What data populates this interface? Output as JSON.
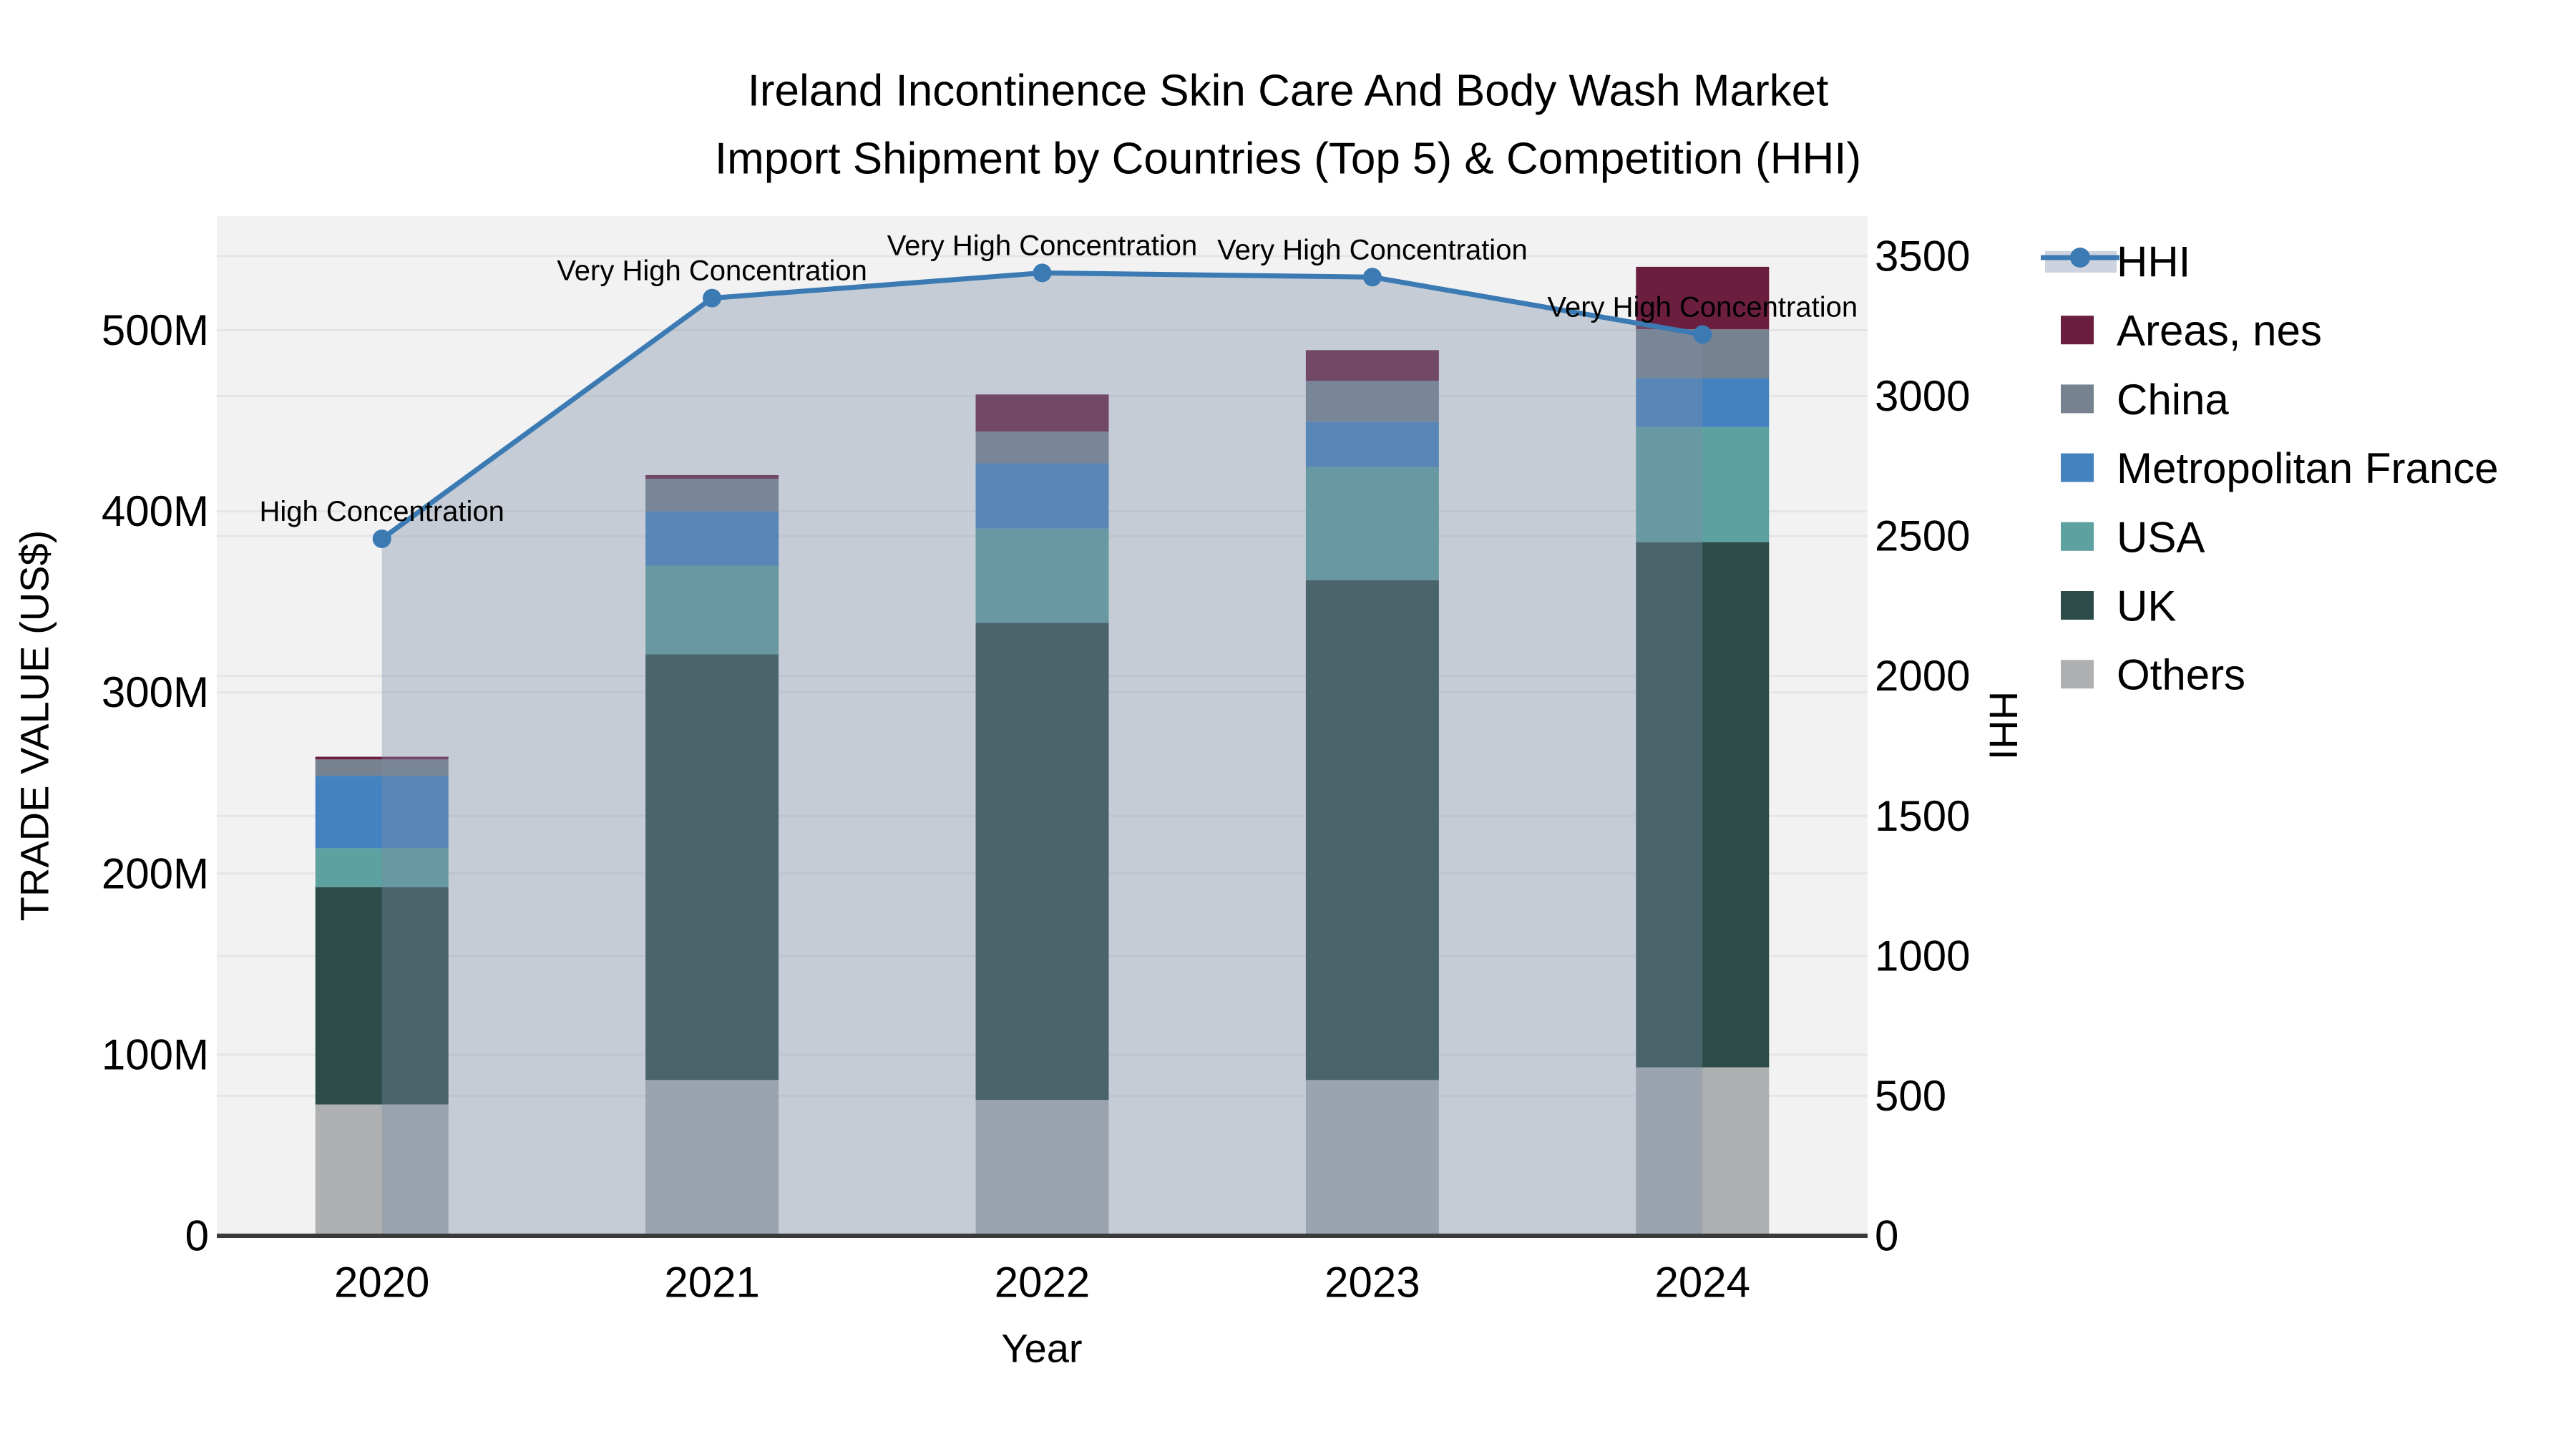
{
  "title": {
    "line1": "Ireland Incontinence Skin Care And Body Wash Market",
    "line2": "Import Shipment by Countries (Top 5) & Competition (HHI)"
  },
  "colors": {
    "background": "#ffffff",
    "plot_bg": "#f2f2f3",
    "grid": "rgba(0,0,0,0.05)",
    "axis_line": "#3a3a3a",
    "hhi_line": "#3b7ab3",
    "hhi_fill": "rgba(124,142,169,0.38)",
    "hhi_legend_band": "#cdd4df"
  },
  "legend": {
    "items": [
      {
        "label": "HHI",
        "type": "line",
        "color": "#3b7ab3"
      },
      {
        "label": "Areas, nes",
        "type": "swatch",
        "color": "#6b1e3e"
      },
      {
        "label": "China",
        "type": "swatch",
        "color": "#76828f"
      },
      {
        "label": "Metropolitan France",
        "type": "swatch",
        "color": "#4382be"
      },
      {
        "label": "USA",
        "type": "swatch",
        "color": "#5da1a0"
      },
      {
        "label": "UK",
        "type": "swatch",
        "color": "#2d4b48"
      },
      {
        "label": "Others",
        "type": "swatch",
        "color": "#aeb0b2"
      }
    ]
  },
  "chart_data": {
    "type": "bar",
    "subtype": "stacked bars with secondary-axis line",
    "title": "Ireland Incontinence Skin Care And Body Wash Market Import Shipment by Countries (Top 5) & Competition (HHI)",
    "xlabel": "Year",
    "ylabel": "TRADE VALUE (US$)",
    "y2label": "HHI",
    "value_unit": "M = millions of US$",
    "categories": [
      "2020",
      "2021",
      "2022",
      "2023",
      "2024"
    ],
    "stack_bottom_to_top": [
      "Others",
      "UK",
      "USA",
      "Metropolitan France",
      "China",
      "Areas, nes"
    ],
    "series": [
      {
        "name": "Areas, nes",
        "color": "#6b1e3e",
        "values": [
          1.5,
          2,
          20.5,
          17,
          34.5
        ]
      },
      {
        "name": "China",
        "color": "#76828f",
        "values": [
          9,
          18,
          17.5,
          22.5,
          27
        ]
      },
      {
        "name": "Metropolitan France",
        "color": "#4382be",
        "values": [
          40,
          30,
          36,
          25,
          27
        ]
      },
      {
        "name": "USA",
        "color": "#5da1a0",
        "values": [
          21.5,
          49,
          52,
          62.5,
          63.5
        ]
      },
      {
        "name": "UK",
        "color": "#2d4b48",
        "values": [
          120,
          235,
          263.5,
          276,
          290
        ]
      },
      {
        "name": "Others",
        "color": "#aeb0b2",
        "values": [
          72.5,
          86,
          75,
          86,
          93
        ]
      }
    ],
    "bar_totals": [
      264.5,
      420,
      464.5,
      489,
      535
    ],
    "line_series": {
      "name": "HHI",
      "axis": "right",
      "color": "#3b7ab3",
      "area_fill": "rgba(124,142,169,0.38)",
      "values": [
        2490,
        3350,
        3440,
        3425,
        3220
      ]
    },
    "annotations": [
      "High Concentration",
      "Very High Concentration",
      "Very High Concentration",
      "Very High Concentration",
      "Very High Concentration"
    ],
    "yticks": [
      0,
      100,
      200,
      300,
      400,
      500
    ],
    "ytick_labels": [
      "0",
      "100M",
      "200M",
      "300M",
      "400M",
      "500M"
    ],
    "ylim": [
      0,
      563
    ],
    "y2ticks": [
      0,
      500,
      1000,
      1500,
      2000,
      2500,
      3000,
      3500
    ],
    "y2tick_labels": [
      "0",
      "500",
      "1000",
      "1500",
      "2000",
      "2500",
      "3000",
      "3500"
    ],
    "y2lim": [
      0,
      3643
    ],
    "grid": "both axes, faint horizontal lines",
    "legend_position": "right, outside plot"
  }
}
